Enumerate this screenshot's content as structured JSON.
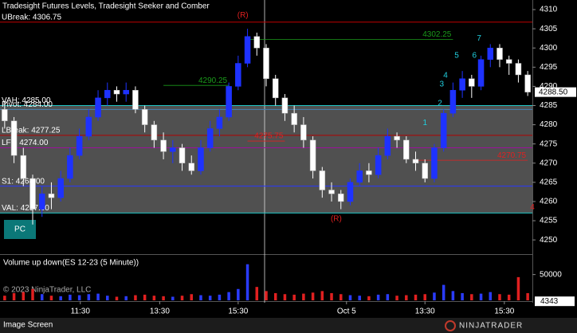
{
  "chart_data": {
    "type": "candlestick",
    "title": "Tradesight Futures Levels, Tradesight Seeker and Comber",
    "xlim": [
      -0.5,
      56.5
    ],
    "xticks": [
      {
        "value": 8.1,
        "label": "11:30"
      },
      {
        "value": 16.6,
        "label": "13:30"
      },
      {
        "value": 25,
        "label": "15:30"
      },
      {
        "value": 36.6,
        "label": "Oct 5"
      },
      {
        "value": 45,
        "label": "13:30"
      },
      {
        "value": 53.5,
        "label": "15:30"
      }
    ],
    "ylim": [
      4246.5,
      4312.5
    ],
    "yticks": [
      4250,
      4255,
      4260,
      4265,
      4270,
      4275,
      4280,
      4285,
      4290,
      4295,
      4300,
      4305,
      4310
    ],
    "up_color": "#1e32ff",
    "down_color": "#ffffff",
    "open": [
      4284,
      4281,
      4272,
      4266,
      4258,
      4262,
      4261,
      4266,
      4272,
      4277,
      4282,
      4287,
      4289,
      4288,
      4289,
      4284,
      4280,
      4276,
      4273,
      4274,
      4270,
      4268,
      4274,
      4279,
      4282,
      4290,
      4296,
      4303,
      4300,
      4292,
      4287,
      4283,
      4280,
      4276,
      4268,
      4263,
      4262,
      4260,
      4265,
      4268,
      4267,
      4272,
      4277,
      4276,
      4271,
      4270,
      4266,
      4274,
      4283,
      4289,
      4292,
      4290,
      4297,
      4300,
      4297,
      4296,
      4293
    ],
    "high": [
      4286,
      4282,
      4274,
      4267,
      4264,
      4265,
      4268,
      4274,
      4279,
      4284,
      4289,
      4291,
      4290,
      4291,
      4290,
      4285,
      4281,
      4278,
      4276,
      4275,
      4272,
      4276,
      4281,
      4284,
      4291,
      4298,
      4305,
      4304,
      4301,
      4293,
      4288,
      4285,
      4282,
      4277,
      4269,
      4265,
      4263,
      4266,
      4270,
      4270,
      4274,
      4279,
      4278,
      4277,
      4273,
      4271,
      4275,
      4284,
      4291,
      4294,
      4293,
      4298,
      4301,
      4301,
      4298,
      4297,
      4294
    ],
    "low": [
      4279,
      4270,
      4264,
      4254,
      4256,
      4258,
      4260,
      4265,
      4271,
      4276,
      4281,
      4285,
      4286,
      4286,
      4283,
      4278,
      4274,
      4271,
      4270,
      4268,
      4267,
      4267,
      4273,
      4277,
      4281,
      4289,
      4295,
      4298,
      4290,
      4285,
      4281,
      4278,
      4274,
      4266,
      4261,
      4260,
      4258,
      4259,
      4264,
      4265,
      4266,
      4271,
      4274,
      4270,
      4268,
      4265,
      4265,
      4273,
      4282,
      4287,
      4287,
      4289,
      4295,
      4295,
      4293,
      4291,
      4287.5
    ],
    "close": [
      4281,
      4272,
      4266,
      4258,
      4262,
      4261,
      4266,
      4272,
      4277,
      4282,
      4287,
      4289,
      4288,
      4289,
      4284,
      4280,
      4276,
      4273,
      4274,
      4270,
      4268,
      4274,
      4279,
      4282,
      4290,
      4296,
      4303,
      4300,
      4292,
      4287,
      4283,
      4280,
      4276,
      4268,
      4263,
      4262,
      4260,
      4265,
      4268,
      4267,
      4272,
      4277,
      4276,
      4271,
      4270,
      4266,
      4274,
      4283,
      4289,
      4292,
      4290,
      4297,
      4300,
      4297,
      4296,
      4293,
      4288.5
    ],
    "last_price": {
      "value": 4288.5,
      "label": "4288.50"
    },
    "levels": [
      {
        "label": "UBreak: 4306.75",
        "value": 4306.75,
        "color": "#c00000"
      },
      {
        "label": "VAH: 4285.00",
        "value": 4285,
        "color": "#20c8c8"
      },
      {
        "label": "Pivot: 4284.00",
        "value": 4284,
        "color": "#4682b4"
      },
      {
        "label": "LBreak: 4277.25",
        "value": 4277.25,
        "color": "#b00000"
      },
      {
        "label": "LFT: 4274.00",
        "value": 4274,
        "color": "#9b109b"
      },
      {
        "label": "S1: 4264.00",
        "value": 4264,
        "color": "#2838ff"
      },
      {
        "label": "VAL: 4257.00",
        "value": 4257,
        "color": "#20c8c8"
      }
    ],
    "markers": [
      {
        "label": "4302.25",
        "value": 4302.25,
        "from": 26,
        "to": 48,
        "color": "#1a9a1a"
      },
      {
        "label": "4290.25",
        "value": 4290.25,
        "from": 17,
        "to": 24,
        "color": "#1a9a1a"
      },
      {
        "label": "4275.75",
        "value": 4275.75,
        "from": 26,
        "to": 30,
        "color": "#e02020"
      },
      {
        "label": "4270.75",
        "value": 4270.75,
        "from": 44,
        "to": 56,
        "color": "#e02020"
      }
    ],
    "annotations": [
      {
        "text": "(R)",
        "x": 25.5,
        "y": 4308.5,
        "color": "#e02020"
      },
      {
        "text": "(R)",
        "x": 35.5,
        "y": 4255.5,
        "color": "#e02020"
      },
      {
        "text": "4",
        "x": 56.5,
        "y": 4258.5,
        "color": "#e02020"
      },
      {
        "text": "1",
        "x": 45,
        "y": 4280.5,
        "color": "#20d0e0"
      },
      {
        "text": "2",
        "x": 46.6,
        "y": 4285.5,
        "color": "#20d0e0"
      },
      {
        "text": "3",
        "x": 46.8,
        "y": 4290.5,
        "color": "#20d0e0"
      },
      {
        "text": "4",
        "x": 47.2,
        "y": 4292.8,
        "color": "#20d0e0"
      },
      {
        "text": "5",
        "x": 48.4,
        "y": 4298,
        "color": "#20d0e0"
      },
      {
        "text": "6",
        "x": 50.3,
        "y": 4298,
        "color": "#20d0e0"
      },
      {
        "text": "7",
        "x": 50.8,
        "y": 4302.5,
        "color": "#20d0e0"
      }
    ],
    "button": "PC",
    "volume": {
      "title": "Volume up down(ES 12-23 (5 Minute))",
      "ylim": [
        0,
        85000
      ],
      "yticks": [
        50000
      ],
      "up_color": "#2a3cff",
      "down_color": "#e02020",
      "values": [
        9000,
        14000,
        16000,
        22000,
        12000,
        9000,
        8000,
        11000,
        10000,
        12000,
        13000,
        9000,
        7000,
        8000,
        10000,
        11000,
        9000,
        8000,
        7000,
        9000,
        12000,
        10000,
        9000,
        11000,
        16000,
        22000,
        70000,
        26000,
        18000,
        14000,
        12000,
        11000,
        13000,
        15000,
        18000,
        14000,
        12000,
        10000,
        9000,
        8000,
        11000,
        12000,
        9000,
        10000,
        11000,
        12000,
        15000,
        30000,
        18000,
        14000,
        12000,
        13000,
        16000,
        12000,
        11000,
        45000,
        14000
      ],
      "last": 4343
    },
    "copyright": "© 2023 NinjaTrader, LLC",
    "footer": "Image Screen",
    "logo": "NINJATRADER"
  }
}
